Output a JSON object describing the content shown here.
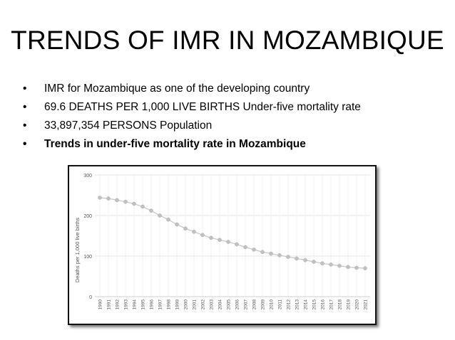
{
  "slide": {
    "title": "TRENDS OF IMR IN MOZAMBIQUE",
    "bullets": [
      {
        "text": "IMR for Mozambique as one of the developing country",
        "bold": false
      },
      {
        "text": "69.6 DEATHS PER 1,000 LIVE BIRTHS Under-five mortality rate",
        "bold": false
      },
      {
        "text": "33,897,354 PERSONS Population",
        "bold": false
      },
      {
        "text": "Trends in under-five mortality rate in Mozambique",
        "bold": true
      }
    ],
    "bullet_glyph": "•"
  },
  "chart_data": {
    "type": "line",
    "title": "",
    "xlabel": "",
    "ylabel": "Deaths per 1,000 live births",
    "ylim": [
      0,
      300
    ],
    "yticks": [
      0,
      100,
      200,
      300
    ],
    "grid": true,
    "categories": [
      "1990",
      "1991",
      "1992",
      "1993",
      "1994",
      "1995",
      "1996",
      "1997",
      "1998",
      "1999",
      "2000",
      "2001",
      "2002",
      "2003",
      "2004",
      "2005",
      "2006",
      "2007",
      "2008",
      "2009",
      "2010",
      "2011",
      "2012",
      "2013",
      "2014",
      "2015",
      "2016",
      "2017",
      "2018",
      "2019",
      "2020",
      "2021"
    ],
    "series": [
      {
        "values": [
          244,
          242,
          238,
          234,
          229,
          222,
          212,
          200,
          190,
          178,
          168,
          160,
          152,
          145,
          140,
          135,
          129,
          122,
          116,
          110,
          106,
          102,
          98,
          94,
          90,
          86,
          82,
          79,
          76,
          73,
          71,
          70
        ],
        "color": "#c8c8c8"
      }
    ],
    "colors": {
      "grid": "#e6e6e6",
      "axis_text": "#555555",
      "line": "#c8c8c8",
      "marker": "#c0c0c0"
    }
  }
}
